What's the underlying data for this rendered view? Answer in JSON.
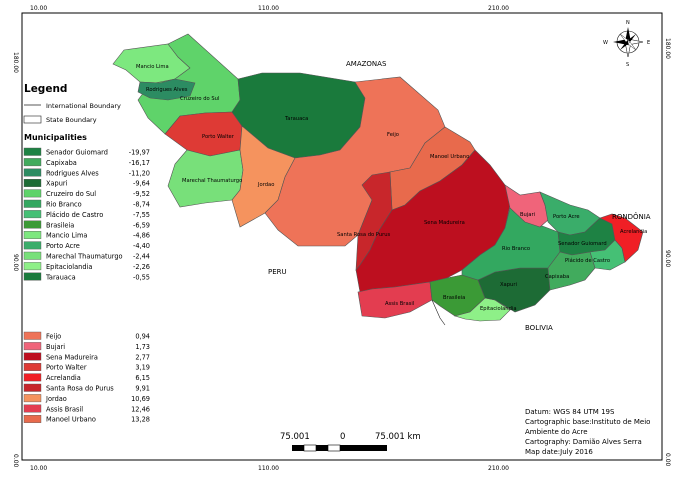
{
  "frame": {
    "top_ticks": [
      "10.00",
      "110.00",
      "210.00"
    ],
    "bottom_ticks": [
      "10.00",
      "110.00",
      "210.00"
    ],
    "left_ticks": [
      "180.00",
      "90.00",
      "0.00"
    ],
    "right_ticks": [
      "180.00",
      "90.00",
      "0.00"
    ]
  },
  "neighbors": [
    "AMAZONAS",
    "PERU",
    "RONDÔNIA",
    "BOLIVIA"
  ],
  "legend": {
    "title": "Legend",
    "international_boundary": "International Boundary",
    "state_boundary": "State Boundary",
    "section_title": "Municipalities",
    "green_items": [
      {
        "name": "Senador Guiomard",
        "value": "-19,97",
        "color": "#1e8244"
      },
      {
        "name": "Capixaba",
        "value": "-16,17",
        "color": "#41ab5d"
      },
      {
        "name": "Rodrigues Alves",
        "value": "-11,20",
        "color": "#2c8c62"
      },
      {
        "name": "Xapuri",
        "value": "-9,64",
        "color": "#1d6b35"
      },
      {
        "name": "Cruzeiro do Sul",
        "value": "-9,52",
        "color": "#5fd36a"
      },
      {
        "name": "Rio Branco",
        "value": "-8,74",
        "color": "#33a860"
      },
      {
        "name": "Plácido de Castro",
        "value": "-7,55",
        "color": "#45c075"
      },
      {
        "name": "Brasileia",
        "value": "-6,59",
        "color": "#3b9a36"
      },
      {
        "name": "Mancio Lima",
        "value": "-4,86",
        "color": "#7de87f"
      },
      {
        "name": "Porto Acre",
        "value": "-4,40",
        "color": "#3aad6a"
      },
      {
        "name": "Marechal Thaumaturgo",
        "value": "-2,44",
        "color": "#78e07a"
      },
      {
        "name": "Epitaciolandia",
        "value": "-2,26",
        "color": "#8ef088"
      },
      {
        "name": "Tarauaca",
        "value": "-0,55",
        "color": "#1a7a3c"
      }
    ],
    "red_items": [
      {
        "name": "Feijo",
        "value": "0,94",
        "color": "#ee7358"
      },
      {
        "name": "Bujari",
        "value": "1,73",
        "color": "#f0647a"
      },
      {
        "name": "Sena Madureira",
        "value": "2,77",
        "color": "#bd0f1f"
      },
      {
        "name": "Porto Walter",
        "value": "3,19",
        "color": "#de3a35"
      },
      {
        "name": "Acrelandia",
        "value": "6,15",
        "color": "#f01f25"
      },
      {
        "name": "Santa Rosa do Purus",
        "value": "9,91",
        "color": "#c8262b"
      },
      {
        "name": "Jordao",
        "value": "10,69",
        "color": "#f5935e"
      },
      {
        "name": "Assis Brasil",
        "value": "12,46",
        "color": "#e33d50"
      },
      {
        "name": "Manoel Urbano",
        "value": "13,28",
        "color": "#e86a4c"
      }
    ]
  },
  "compass": {
    "n": "N",
    "s": "S",
    "e": "E",
    "w": "W"
  },
  "scalebar": {
    "left": "75.001",
    "mid": "0",
    "right": "75.001 km"
  },
  "info": {
    "datum": "Datum: WGS 84 UTM 19S",
    "base1": "Cartographic base:Instituto de Meio",
    "base2": "Ambiente do Acre",
    "cartography": "Cartography: Damião Alves Serra",
    "date": "Map date:July 2016"
  },
  "municipalities": {
    "mancio_lima": "Mancio Lima",
    "rodrigues_alves": "Rodrigues Alves",
    "cruzeiro_do_sul": "Cruzeiro do Sul",
    "porto_walter": "Porto Walter",
    "marechal": "Marechal Thaumaturgo",
    "jordao": "Jordao",
    "tarauaca": "Tarauaca",
    "feijo": "Feijo",
    "manoel_urbano": "Manoel Urbano",
    "santa_rosa": "Santa Rosa do Purus",
    "sena_madureira": "Sena Madureira",
    "assis_brasil": "Assis Brasil",
    "brasileia": "Brasileia",
    "epitaciolandia": "Epitaciolandia",
    "xapuri": "Xapuri",
    "rio_branco": "Rio Branco",
    "bujari": "Bujari",
    "porto_acre": "Porto Acre",
    "senador_guiomard": "Senador Guiomard",
    "placido_de_castro": "Plácido de Castro",
    "capixaba": "Capixaba",
    "acrelandia": "Acrelandia"
  }
}
